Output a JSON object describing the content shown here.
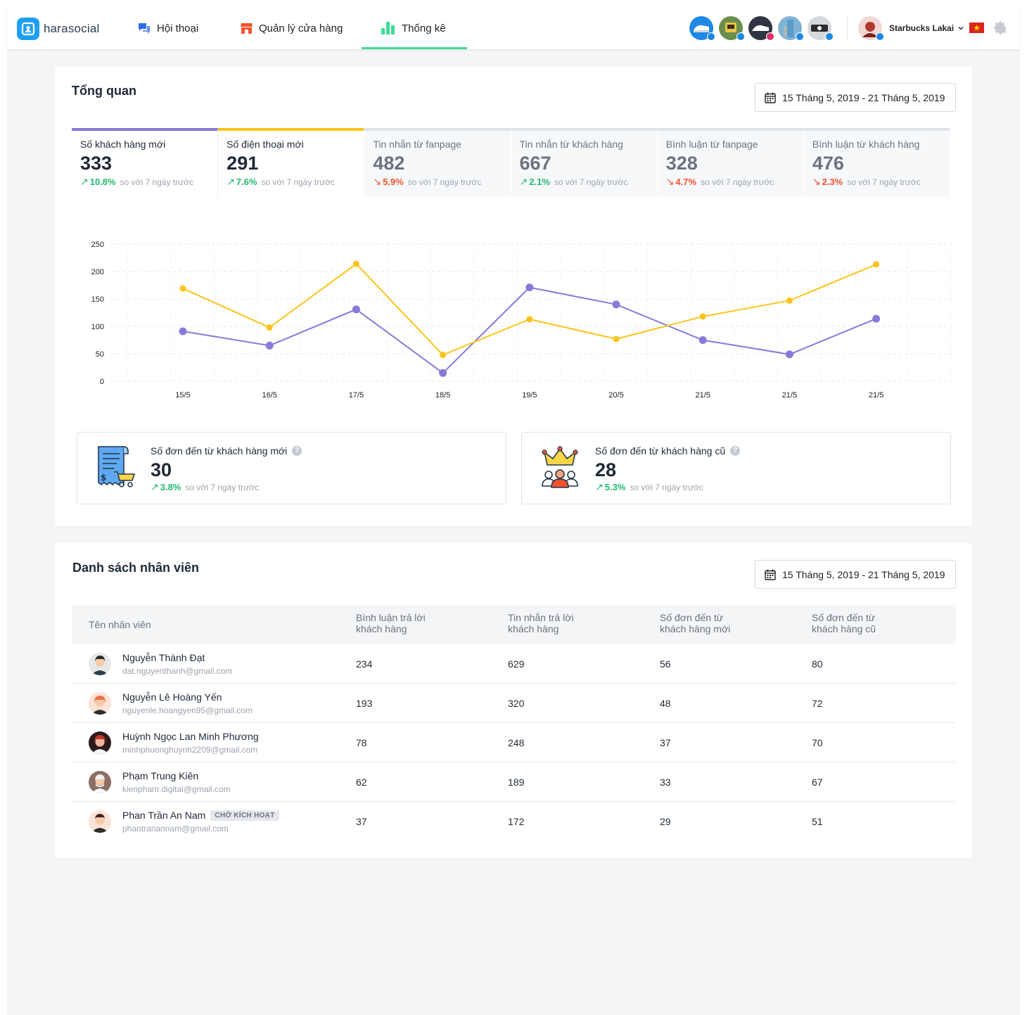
{
  "header": {
    "logo_text": "harasocial",
    "nav": [
      {
        "label": "Hội thoại",
        "icon": "chat-icon"
      },
      {
        "label": "Quản lý cửa hàng",
        "icon": "store-icon"
      },
      {
        "label": "Thống kê",
        "icon": "bar-chart-icon",
        "active": true
      }
    ],
    "account_name": "Starbucks Lakai",
    "brand_color": "#1ea0f2",
    "active_color": "#3ddc97"
  },
  "overview": {
    "title": "Tổng quan",
    "date_range": "15 Tháng 5, 2019 - 21 Tháng 5, 2019",
    "compare_text": "so với 7 ngày trước",
    "metrics": [
      {
        "label": "Số khách hàng mới",
        "value": "333",
        "change": "10.8%",
        "direction": "up"
      },
      {
        "label": "Số điện thoại mới",
        "value": "291",
        "change": "7.6%",
        "direction": "up"
      },
      {
        "label": "Tin nhắn từ fanpage",
        "value": "482",
        "change": "5.9%",
        "direction": "down"
      },
      {
        "label": "Tin nhắn từ khách hàng",
        "value": "667",
        "change": "2.1%",
        "direction": "up"
      },
      {
        "label": "Bình luận từ fanpage",
        "value": "328",
        "change": "4.7%",
        "direction": "down"
      },
      {
        "label": "Bình luận từ khách hàng",
        "value": "476",
        "change": "2.3%",
        "direction": "down"
      }
    ],
    "orders": [
      {
        "label": "Số đơn đến từ khách hàng mới",
        "value": "30",
        "change": "3.8%",
        "direction": "up"
      },
      {
        "label": "Số đơn đến từ khách hàng cũ",
        "value": "28",
        "change": "5.3%",
        "direction": "up"
      }
    ]
  },
  "chart_data": {
    "type": "line",
    "categories": [
      "15/5",
      "16/5",
      "17/5",
      "18/5",
      "19/5",
      "20/5",
      "21/5",
      "21/5",
      "21/5"
    ],
    "series": [
      {
        "name": "Số khách hàng mới",
        "color": "#8a79d8",
        "values": [
          91,
          65,
          131,
          15,
          171,
          140,
          75,
          49,
          114
        ]
      },
      {
        "name": "Số điện thoại mới",
        "color": "#fcc419",
        "values": [
          169,
          98,
          214,
          48,
          113,
          77,
          118,
          147,
          213
        ]
      }
    ],
    "yticks": [
      0,
      50,
      100,
      150,
      200,
      250
    ],
    "ylim": [
      0,
      250
    ],
    "grid": true
  },
  "staff": {
    "title": "Danh sách nhân viên",
    "date_range": "15 Tháng 5, 2019 - 21 Tháng 5, 2019",
    "columns": [
      "Tên nhân viên",
      "Bình luận trả lời\nkhách hàng",
      "Tin nhắn trả lời\nkhách hàng",
      "Số đơn đến từ\nkhách hàng mới",
      "Số đơn đến từ\nkhách hàng cũ"
    ],
    "rows": [
      {
        "name": "Nguyễn Thành Đạt",
        "email": "dat.nguyenthanh@gmail.com",
        "comments": "234",
        "messages": "629",
        "new_orders": "56",
        "old_orders": "80",
        "status": ""
      },
      {
        "name": "Nguyễn Lê Hoàng Yến",
        "email": "nguyenle.hoangyen95@gmail.com",
        "comments": "193",
        "messages": "320",
        "new_orders": "48",
        "old_orders": "72",
        "status": ""
      },
      {
        "name": "Huỳnh Ngọc Lan Minh Phương",
        "email": "minhphuonghuynh2209@gmail.com",
        "comments": "78",
        "messages": "248",
        "new_orders": "37",
        "old_orders": "70",
        "status": ""
      },
      {
        "name": "Phạm Trung Kiên",
        "email": "kienpham.digital@gmail.com",
        "comments": "62",
        "messages": "189",
        "new_orders": "33",
        "old_orders": "67",
        "status": ""
      },
      {
        "name": "Phan Trần An Nam",
        "email": "phantranannam@gmail.com",
        "comments": "37",
        "messages": "172",
        "new_orders": "29",
        "old_orders": "51",
        "status": "CHỜ KÍCH HOẠT"
      }
    ]
  }
}
